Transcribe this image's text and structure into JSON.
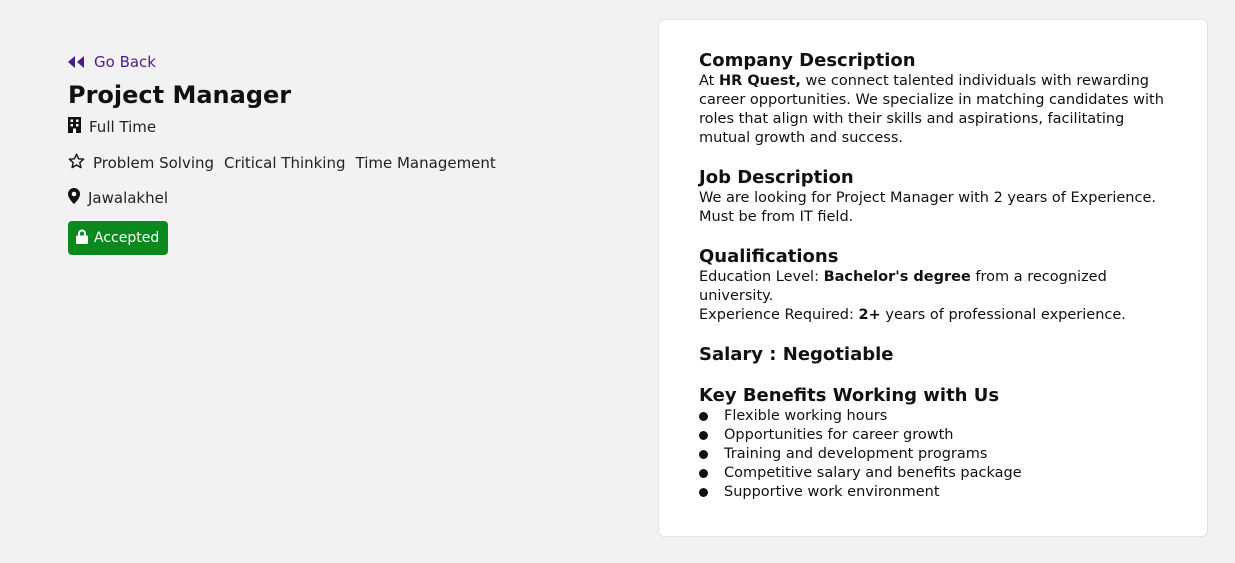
{
  "nav": {
    "go_back_label": "Go Back"
  },
  "job": {
    "title": "Project Manager",
    "type": "Full Time",
    "skills": [
      "Problem Solving",
      "Critical Thinking",
      "Time Management"
    ],
    "location": "Jawalakhel",
    "status": "Accepted",
    "status_color": "#0a8a1e"
  },
  "company_description": {
    "title": "Company Description",
    "prefix": "At ",
    "company_name": "HR Quest,",
    "text": " we connect talented individuals with rewarding career opportunities. We specialize in matching candidates with roles that align with their skills and aspirations, facilitating mutual growth and success."
  },
  "job_description": {
    "title": "Job Description",
    "text": "We are looking for Project Manager with 2 years of Experience. Must be from IT field."
  },
  "qualifications": {
    "title": "Qualifications",
    "education_label": "Education Level: ",
    "education_value": "Bachelor's degree",
    "education_suffix": " from a recognized university.",
    "experience_label": "Experience Required: ",
    "experience_value": "2+",
    "experience_suffix": " years of professional experience."
  },
  "salary": {
    "label": "Salary : Negotiable"
  },
  "benefits": {
    "title": "Key Benefits Working with Us",
    "items": [
      "Flexible working hours",
      "Opportunities for career growth",
      "Training and development programs",
      "Competitive salary and benefits package",
      "Supportive work environment"
    ]
  },
  "icons": {
    "back": "double-left-arrow-icon",
    "type": "building-icon",
    "skills": "star-outline-icon",
    "location": "map-pin-icon",
    "status": "lock-icon"
  },
  "colors": {
    "accent": "#4b1c8c",
    "background": "#f2f2f2",
    "card": "#ffffff"
  }
}
